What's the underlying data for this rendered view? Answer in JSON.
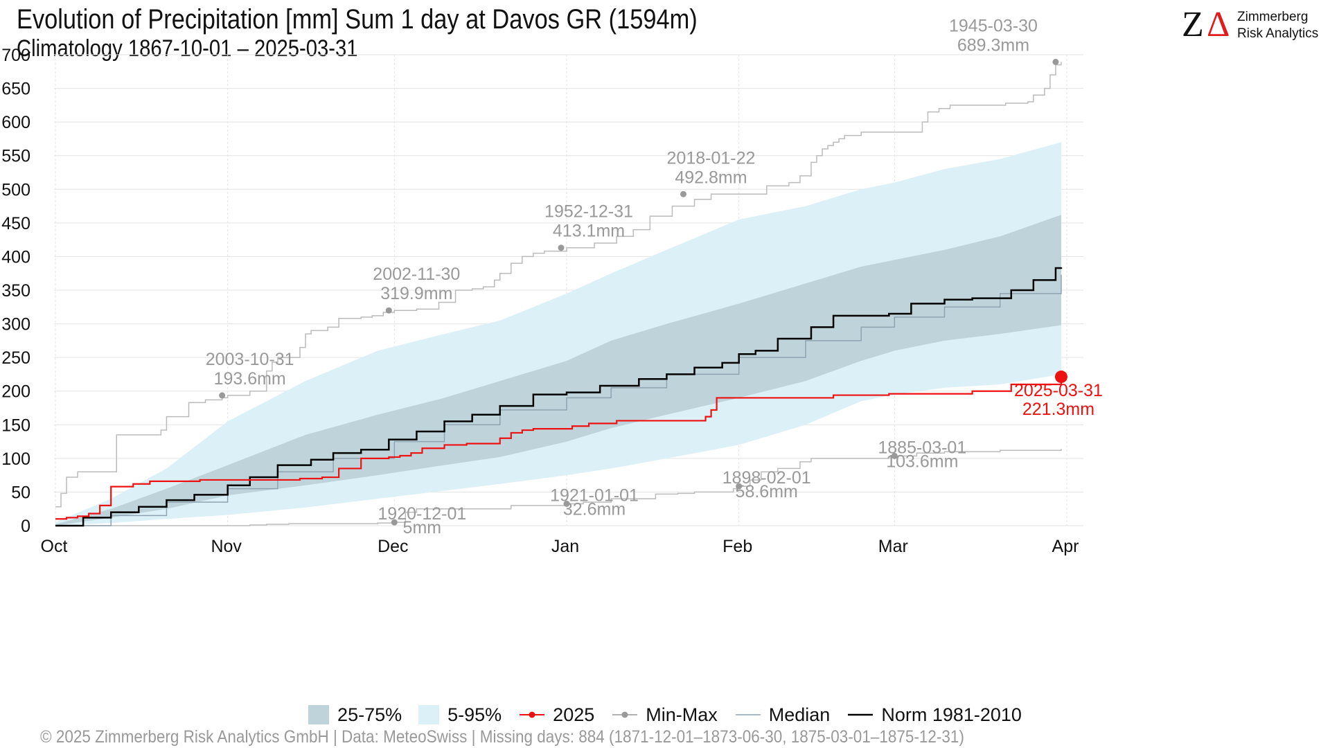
{
  "header": {
    "title": "Evolution of Precipitation [mm] Sum 1 day at Davos  GR (1594m)",
    "subtitle": "Climatology 1867-10-01 – 2025-03-31"
  },
  "logo": {
    "name_line1": "Zimmerberg",
    "name_line2": "Risk Analytics"
  },
  "legend": {
    "iqr_label": "25-75%",
    "p5_95_label": "5-95%",
    "current_label": "2025",
    "minmax_label": "Min-Max",
    "median_label": "Median",
    "norm_label": "Norm 1981-2010"
  },
  "footer": "©  2025 Zimmerberg Risk Analytics GmbH | Data: MeteoSwiss | Missing days: 884 (1871-12-01–1873-06-30, 1875-03-01–1875-12-31)",
  "colors": {
    "band_5_95": "#dcf0f8",
    "band_25_75": "#bfd4da",
    "current": "#ee1111",
    "norm": "#000000",
    "median": "#8fa2b0",
    "minmax": "#bbbbbb",
    "minmax_point": "#999999",
    "annotation": "#999999"
  },
  "chart_data": {
    "type": "line",
    "x_unit": "day of hydrological year starting 1 Oct",
    "ylim": [
      0,
      700
    ],
    "yticks": [
      0,
      50,
      100,
      150,
      200,
      250,
      300,
      350,
      400,
      450,
      500,
      550,
      600,
      650,
      700
    ],
    "xlim": [
      0,
      182
    ],
    "xticks": [
      {
        "label": "Oct",
        "day": 0
      },
      {
        "label": "Nov",
        "day": 31
      },
      {
        "label": "Dec",
        "day": 61
      },
      {
        "label": "Jan",
        "day": 92
      },
      {
        "label": "Feb",
        "day": 123
      },
      {
        "label": "Mar",
        "day": 151
      },
      {
        "label": "Apr",
        "day": 182
      }
    ],
    "bands": {
      "p5_95": {
        "x": [
          0,
          10,
          20,
          31,
          45,
          58,
          70,
          80,
          92,
          100,
          110,
          123,
          135,
          145,
          151,
          160,
          170,
          181
        ],
        "low": [
          0,
          4,
          10,
          16,
          27,
          40,
          52,
          62,
          75,
          85,
          100,
          120,
          150,
          185,
          195,
          205,
          210,
          225
        ],
        "high": [
          5,
          40,
          85,
          155,
          215,
          260,
          285,
          305,
          345,
          375,
          410,
          455,
          475,
          500,
          510,
          530,
          545,
          570
        ]
      },
      "p25_75": {
        "x": [
          0,
          10,
          20,
          31,
          45,
          58,
          70,
          80,
          92,
          100,
          110,
          123,
          135,
          145,
          151,
          160,
          170,
          181
        ],
        "low": [
          0,
          12,
          25,
          45,
          60,
          75,
          90,
          102,
          125,
          145,
          165,
          190,
          215,
          245,
          260,
          275,
          285,
          298
        ],
        "high": [
          2,
          25,
          55,
          90,
          135,
          165,
          190,
          215,
          245,
          275,
          300,
          330,
          360,
          385,
          395,
          410,
          430,
          462
        ]
      }
    },
    "series": [
      {
        "name": "Norm 1981-2010",
        "step": true,
        "x": [
          0,
          5,
          10,
          15,
          20,
          25,
          31,
          35,
          40,
          46,
          50,
          55,
          60,
          65,
          70,
          75,
          80,
          86,
          92,
          98,
          105,
          110,
          115,
          120,
          123,
          126,
          130,
          136,
          140,
          150,
          154,
          160,
          165,
          172,
          176,
          180,
          181
        ],
        "y": [
          0,
          12,
          20,
          28,
          38,
          46,
          60,
          72,
          90,
          98,
          108,
          113,
          128,
          140,
          155,
          165,
          178,
          195,
          198,
          208,
          218,
          225,
          235,
          242,
          255,
          260,
          278,
          295,
          312,
          315,
          330,
          336,
          338,
          350,
          365,
          383,
          384
        ]
      },
      {
        "name": "Median",
        "step": true,
        "x": [
          0,
          10,
          20,
          31,
          40,
          50,
          61,
          70,
          80,
          92,
          100,
          110,
          123,
          135,
          145,
          151,
          160,
          170,
          181
        ],
        "y": [
          0,
          15,
          35,
          55,
          80,
          100,
          125,
          150,
          172,
          190,
          205,
          225,
          250,
          275,
          295,
          310,
          325,
          345,
          373
        ]
      },
      {
        "name": "2025",
        "step": true,
        "x": [
          0,
          2,
          4,
          6,
          8,
          10,
          14,
          17,
          21,
          26,
          35,
          44,
          48,
          51,
          55,
          60,
          62,
          64,
          66,
          70,
          74,
          80,
          82,
          84,
          86,
          90,
          93,
          96,
          101,
          107,
          111,
          116,
          117,
          118,
          119,
          123,
          132,
          140,
          150,
          160,
          165,
          172,
          181
        ],
        "y": [
          10,
          12,
          14,
          18,
          30,
          58,
          62,
          66,
          66,
          68,
          68,
          70,
          72,
          85,
          100,
          102,
          104,
          108,
          115,
          120,
          122,
          130,
          138,
          142,
          144,
          144,
          148,
          152,
          156,
          156,
          156,
          156,
          162,
          172,
          190,
          190,
          190,
          194,
          196,
          196,
          200,
          210,
          221.3
        ]
      },
      {
        "name": "Max",
        "step": true,
        "x": [
          0,
          1,
          2,
          4,
          8,
          11,
          18,
          19,
          20,
          24,
          27,
          30,
          31,
          35,
          38,
          39,
          40,
          44,
          45,
          46,
          49,
          51,
          55,
          57,
          59,
          61,
          65,
          69,
          72,
          74,
          75,
          77,
          79,
          80,
          82,
          84,
          86,
          88,
          90,
          92,
          96,
          97,
          101,
          104,
          107,
          111,
          115,
          118,
          121,
          123,
          128,
          130,
          131,
          132,
          134,
          136,
          137,
          138,
          139,
          140,
          141,
          142,
          145,
          155,
          156,
          157,
          159,
          161,
          165,
          171,
          175,
          176,
          178,
          179,
          180,
          181
        ],
        "y": [
          28,
          48,
          72,
          80,
          80,
          135,
          135,
          142,
          162,
          183,
          187,
          190,
          193.6,
          200,
          230,
          243,
          250,
          265,
          285,
          290,
          295,
          308,
          310,
          312,
          317,
          319.9,
          322,
          332,
          350,
          350,
          352,
          355,
          365,
          375,
          390,
          400,
          405,
          408,
          408,
          413.1,
          413.1,
          420,
          430,
          440,
          460,
          475,
          485,
          492.8,
          492.8,
          492.8,
          505,
          505,
          505,
          510,
          520,
          540,
          550,
          560,
          565,
          570,
          575,
          580,
          585,
          585,
          600,
          615,
          620,
          625,
          625,
          628,
          630,
          640,
          650,
          670,
          685,
          689.3
        ]
      },
      {
        "name": "Min",
        "step": true,
        "x": [
          0,
          20,
          30,
          35,
          38,
          42,
          45,
          50,
          55,
          58,
          60,
          61,
          63,
          65,
          70,
          75,
          82,
          87,
          92,
          95,
          100,
          103,
          108,
          112,
          115,
          120,
          122,
          123,
          125,
          127,
          130,
          134,
          136,
          140,
          145,
          150,
          151,
          155,
          160,
          170,
          181
        ],
        "y": [
          0,
          0,
          0,
          1,
          2,
          3,
          3,
          3,
          3,
          4,
          4,
          5,
          20,
          25,
          25,
          25,
          30,
          30,
          32.6,
          35,
          40,
          40,
          47,
          48,
          50,
          50,
          55,
          58.6,
          68,
          80,
          85,
          95,
          100,
          100,
          100,
          102,
          103.6,
          108,
          110,
          112,
          114
        ]
      }
    ],
    "highlight": {
      "series": "2025",
      "x": 181,
      "y": 221.3,
      "label_date": "2025-03-31",
      "label_value": "221.3mm"
    },
    "annotations": [
      {
        "date": "2003-10-31",
        "value": "193.6mm",
        "x": 30,
        "y": 193.6
      },
      {
        "date": "2002-11-30",
        "value": "319.9mm",
        "x": 60,
        "y": 319.9
      },
      {
        "date": "1952-12-31",
        "value": "413.1mm",
        "x": 91,
        "y": 413.1
      },
      {
        "date": "2018-01-22",
        "value": "492.8mm",
        "x": 113,
        "y": 492.8
      },
      {
        "date": "1945-03-30",
        "value": "689.3mm",
        "x": 180,
        "y": 689.3
      },
      {
        "date": "1920-12-01",
        "value": "5mm",
        "x": 61,
        "y": 5
      },
      {
        "date": "1921-01-01",
        "value": "32.6mm",
        "x": 92,
        "y": 32.6
      },
      {
        "date": "1898-02-01",
        "value": "58.6mm",
        "x": 123,
        "y": 58.6
      },
      {
        "date": "1885-03-01",
        "value": "103.6mm",
        "x": 151,
        "y": 103.6
      }
    ],
    "grid": true
  }
}
